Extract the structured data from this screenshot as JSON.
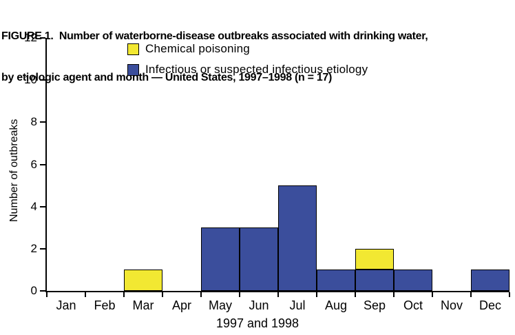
{
  "figure": {
    "title_line1": "FIGURE 1.  Number of waterborne-disease outbreaks associated with drinking water,",
    "title_line2": "by etiologic agent and month — United States, 1997–1998 (n = 17)"
  },
  "chart_data": {
    "type": "bar",
    "stacked": true,
    "title": "FIGURE 1. Number of waterborne-disease outbreaks associated with drinking water, by etiologic agent and month — United States, 1997–1998 (n = 17)",
    "n": 17,
    "xlabel": "1997 and 1998",
    "ylabel": "Number of outbreaks",
    "ylim": [
      0,
      12
    ],
    "yticks": [
      0,
      2,
      4,
      6,
      8,
      10,
      12
    ],
    "grid": false,
    "legend_position": "upper-left-inside",
    "categories": [
      "Jan",
      "Feb",
      "Mar",
      "Apr",
      "May",
      "Jun",
      "Jul",
      "Aug",
      "Sep",
      "Oct",
      "Nov",
      "Dec"
    ],
    "series": [
      {
        "key": "infectious",
        "name": "Infectious or suspected infectious etiology",
        "color": "#3b4e9c",
        "stack_order": "bottom",
        "values": [
          0,
          0,
          0,
          0,
          3,
          3,
          5,
          1,
          1,
          1,
          0,
          1
        ]
      },
      {
        "key": "chemical",
        "name": "Chemical poisoning",
        "color": "#f2e832",
        "stack_order": "top",
        "values": [
          0,
          0,
          1,
          0,
          0,
          0,
          0,
          0,
          1,
          0,
          0,
          0
        ]
      }
    ],
    "legend": [
      {
        "label": "Chemical poisoning",
        "color": "#f2e832"
      },
      {
        "label": "Infectious or suspected infectious etiology",
        "color": "#3b4e9c"
      }
    ]
  }
}
